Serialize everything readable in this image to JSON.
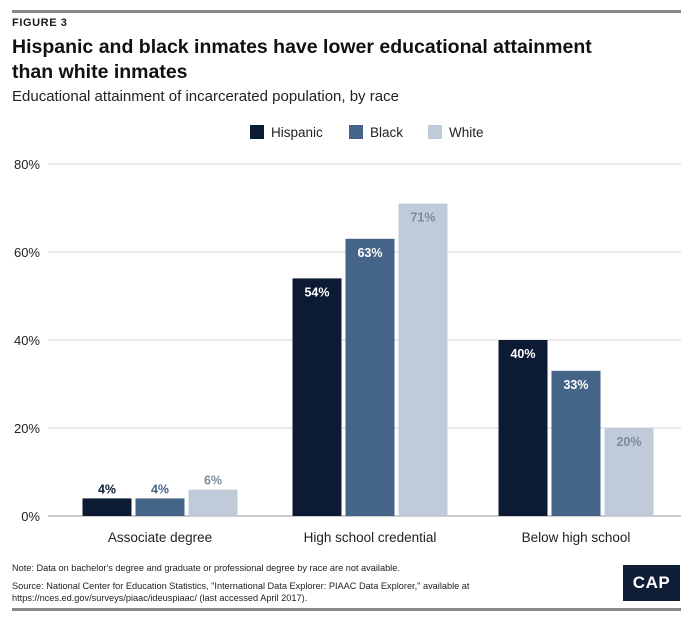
{
  "figure_label": "FIGURE 3",
  "title": "Hispanic and black inmates have lower educational attainment than white inmates",
  "subtitle": "Educational attainment of incarcerated population, by race",
  "note": "Note: Data on bachelor's degree and graduate or professional degree by race are not available.",
  "source": "Source: National Center for Education Statistics, \"International Data Explorer: PIAAC Data Explorer,\" available at https://nces.ed.gov/surveys/piaac/ideuspiaac/ (last accessed April 2017).",
  "logo_text": "CAP",
  "chart_data": {
    "type": "bar",
    "title": "Educational attainment of incarcerated population, by race",
    "categories": [
      "Associate degree",
      "High school credential",
      "Below high school"
    ],
    "series": [
      {
        "name": "Hispanic",
        "values": [
          4,
          54,
          40
        ],
        "color": "#0d1a33",
        "label_color": "#ffffff"
      },
      {
        "name": "Black",
        "values": [
          4,
          63,
          33
        ],
        "color": "#456588",
        "label_color": "#ffffff"
      },
      {
        "name": "White",
        "values": [
          6,
          71,
          20
        ],
        "color": "#bfcbd8",
        "label_color": "#7d8a98"
      }
    ],
    "ylim": [
      0,
      80
    ],
    "yticks": [
      0,
      20,
      40,
      60,
      80
    ],
    "ytick_labels": [
      "0%",
      "20%",
      "40%",
      "60%",
      "80%"
    ],
    "value_suffix": "%",
    "grid": true,
    "legend_position": "top-center"
  }
}
